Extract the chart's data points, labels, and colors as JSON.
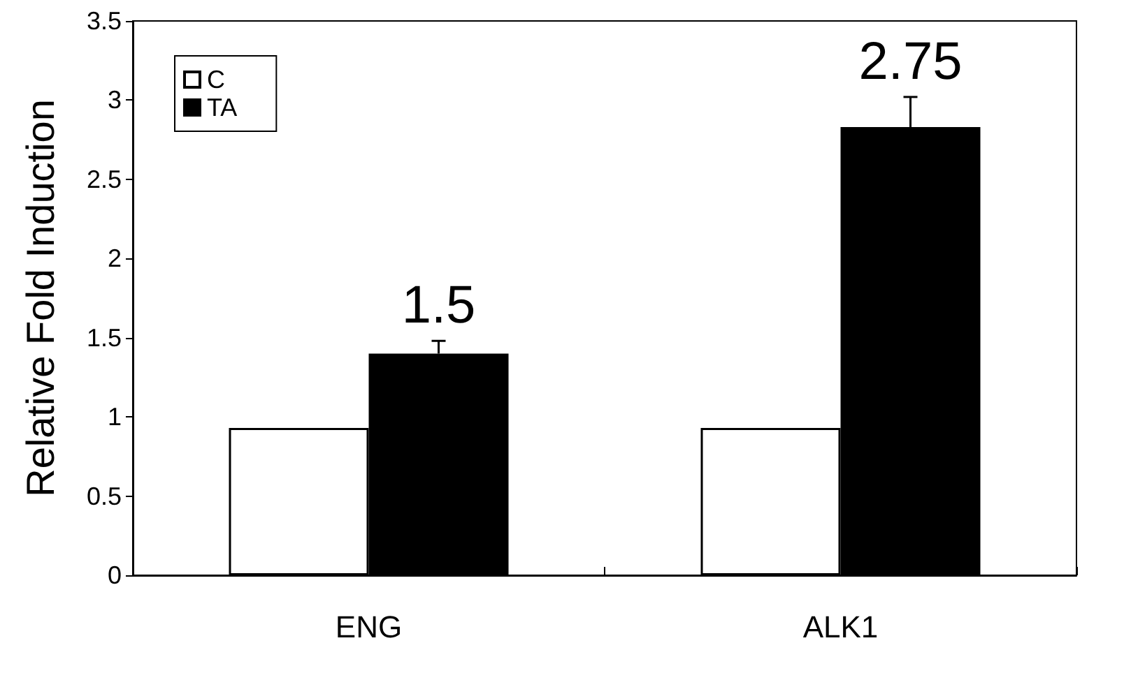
{
  "chart_data": {
    "type": "bar",
    "ylabel": "Relative Fold Induction",
    "categories": [
      "ENG",
      "ALK1"
    ],
    "series": [
      {
        "name": "C",
        "color": "#ffffff",
        "values": [
          0.93,
          0.93
        ]
      },
      {
        "name": "TA",
        "color": "#000000",
        "values": [
          1.4,
          2.83
        ],
        "errors": [
          [
            1.4,
            1.48
          ],
          [
            2.83,
            3.02
          ]
        ]
      }
    ],
    "ylim": [
      0,
      3.5
    ],
    "yticks": [
      0,
      0.5,
      1,
      1.5,
      2,
      2.5,
      3,
      3.5
    ],
    "grid": false,
    "legend": "top left",
    "annotations": [
      "1.5",
      "2.75"
    ]
  }
}
